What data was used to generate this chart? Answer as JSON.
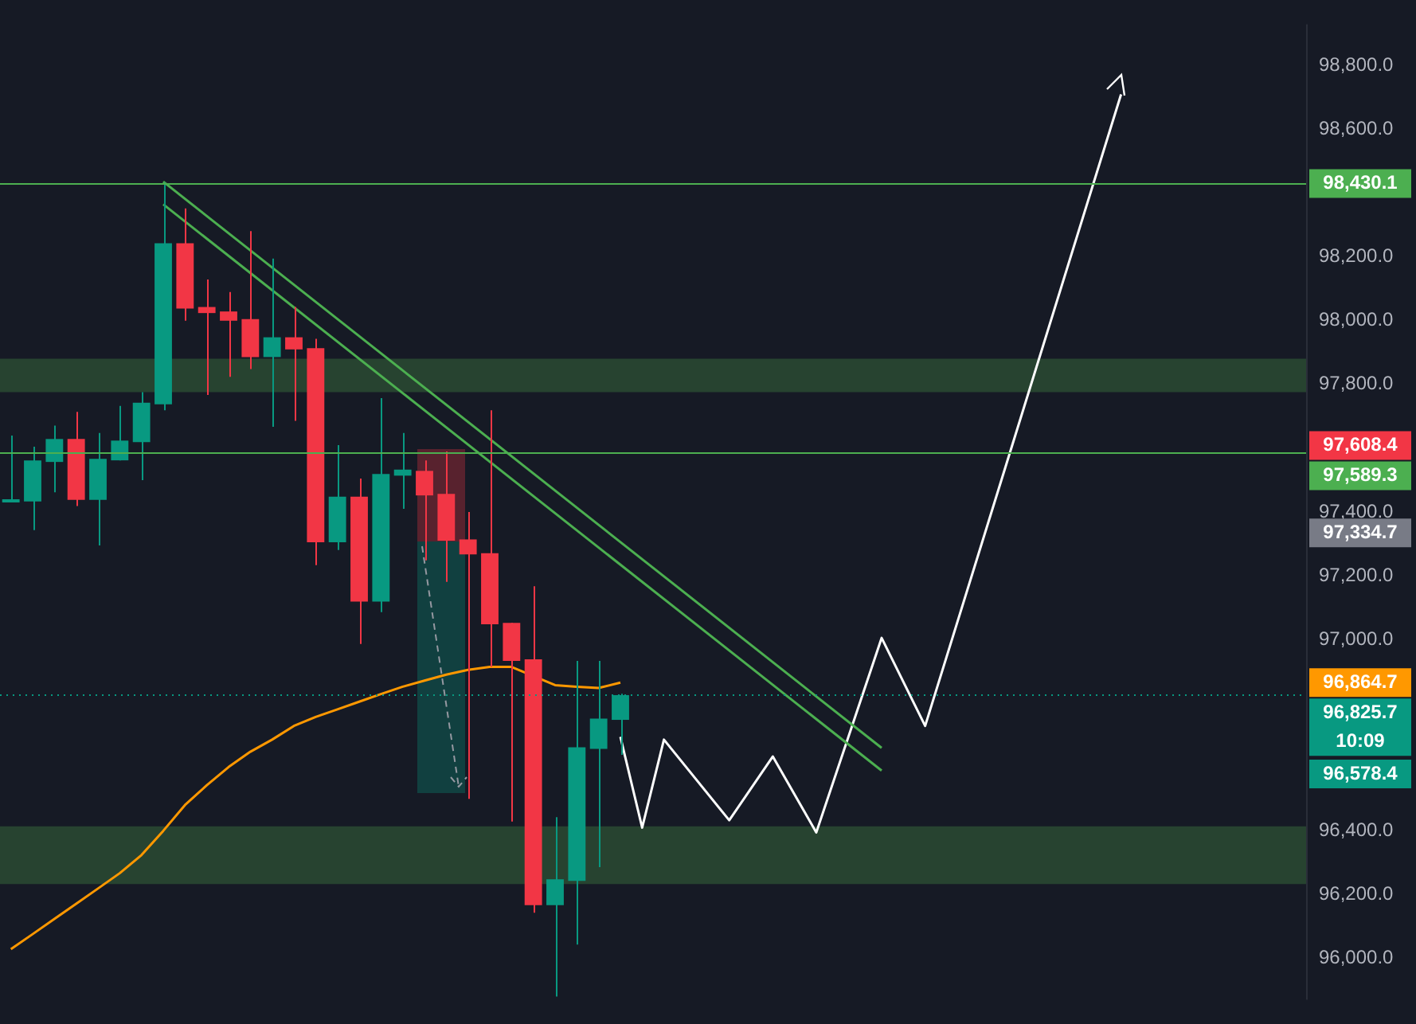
{
  "chart_data": {
    "type": "candlestick",
    "categories": [
      null,
      null,
      null,
      null,
      null,
      null,
      null,
      null,
      null,
      null,
      null,
      null,
      null,
      null,
      null,
      null,
      null,
      null,
      null,
      null,
      null,
      null,
      null,
      null,
      null,
      null,
      null,
      null,
      null,
      null,
      null,
      null,
      null,
      null,
      null,
      null,
      null,
      null,
      null,
      null,
      null,
      null,
      null,
      null,
      null,
      null,
      null,
      null,
      null,
      null,
      null,
      null,
      null,
      null,
      null,
      null,
      null,
      null,
      null,
      null
    ],
    "ohlc": [
      [
        97430,
        97640,
        97430,
        97440
      ],
      [
        97433,
        97605,
        97343,
        97562
      ],
      [
        97557,
        97671,
        97462,
        97629
      ],
      [
        97629,
        97714,
        97419,
        97438
      ],
      [
        97438,
        97648,
        97295,
        97567
      ],
      [
        97562,
        97733,
        97562,
        97624
      ],
      [
        97619,
        97776,
        97500,
        97743
      ],
      [
        97738,
        98433,
        97719,
        98243
      ],
      [
        98243,
        98352,
        98000,
        98038
      ],
      [
        98043,
        98129,
        97767,
        98024
      ],
      [
        98029,
        98090,
        97824,
        98000
      ],
      [
        98005,
        98281,
        97848,
        97886
      ],
      [
        97886,
        98195,
        97667,
        97948
      ],
      [
        97948,
        98043,
        97686,
        97910
      ],
      [
        97914,
        97943,
        97233,
        97305
      ],
      [
        97305,
        97610,
        97281,
        97448
      ],
      [
        97448,
        97505,
        96986,
        97119
      ],
      [
        97119,
        97757,
        97086,
        97519
      ],
      [
        97514,
        97648,
        97410,
        97533
      ],
      [
        97529,
        97562,
        97248,
        97452
      ],
      [
        97457,
        97590,
        97181,
        97310
      ],
      [
        97314,
        97400,
        96500,
        97267
      ],
      [
        97271,
        97719,
        96914,
        97048
      ],
      [
        97052,
        97052,
        96429,
        96933
      ],
      [
        96938,
        97167,
        96143,
        96167
      ],
      [
        96167,
        96443,
        95880,
        96248
      ],
      [
        96243,
        96933,
        96043,
        96662
      ],
      [
        96657,
        96933,
        96286,
        96752
      ],
      [
        96748,
        96830,
        96638,
        96825.7
      ],
      null,
      null,
      null,
      null,
      null,
      null,
      null,
      null,
      null,
      null,
      null,
      null,
      null,
      null,
      null,
      null,
      null,
      null,
      null,
      null,
      null,
      null,
      null,
      null,
      null,
      null,
      null,
      null,
      null,
      null,
      null
    ],
    "colors": [
      "#089981",
      "#089981",
      "#089981",
      "#f23645",
      "#089981",
      "#089981",
      "#089981",
      "#089981",
      "#f23645",
      "#f23645",
      "#f23645",
      "#f23645",
      "#089981",
      "#f23645",
      "#f23645",
      "#089981",
      "#f23645",
      "#089981",
      "#089981",
      "#f23645",
      "#f23645",
      "#f23645",
      "#f23645",
      "#f23645",
      "#f23645",
      "#089981",
      "#089981",
      "#089981",
      "#089981",
      null,
      null,
      null,
      null,
      null,
      null,
      null,
      null,
      null,
      null,
      null,
      null,
      null,
      null,
      null,
      null,
      null,
      null,
      null,
      null,
      null,
      null,
      null,
      null,
      null,
      null,
      null,
      null,
      null,
      null,
      null
    ],
    "series": [
      {
        "type": "line",
        "color": "#ff9800",
        "values": [
          96029,
          96076,
          96124,
          96171,
          96219,
          96267,
          96324,
          96400,
          96481,
          96543,
          96600,
          96648,
          96686,
          96729,
          96757,
          96781,
          96805,
          96829,
          96852,
          96871,
          96890,
          96905,
          96914,
          96914,
          null,
          96857,
          96852,
          96848,
          96865,
          null,
          null,
          null,
          null,
          null,
          null,
          null,
          null,
          null,
          null,
          null,
          null,
          null,
          null,
          null,
          null,
          null,
          null,
          null,
          null,
          null,
          null,
          null,
          null,
          null,
          null,
          null,
          null,
          null,
          null,
          null
        ]
      },
      {
        "type": "line",
        "color": "#4caf50",
        "values": [
          null,
          null,
          null,
          null,
          null,
          null,
          null,
          98436,
          null,
          null,
          null,
          null,
          null,
          null,
          null,
          null,
          null,
          null,
          null,
          null,
          null,
          null,
          null,
          null,
          null,
          null,
          null,
          null,
          null,
          null,
          null,
          null,
          null,
          null,
          null,
          null,
          null,
          null,
          null,
          null,
          96660,
          null,
          null,
          null,
          null,
          null,
          null,
          null,
          null,
          null,
          null,
          null,
          null,
          null,
          null,
          null,
          null,
          null,
          null,
          null
        ]
      },
      {
        "type": "line",
        "color": "#4caf50",
        "values": [
          null,
          null,
          null,
          null,
          null,
          null,
          null,
          98365,
          null,
          null,
          null,
          null,
          null,
          null,
          null,
          null,
          null,
          null,
          null,
          null,
          null,
          null,
          null,
          null,
          null,
          null,
          null,
          null,
          null,
          null,
          null,
          null,
          null,
          null,
          null,
          null,
          null,
          null,
          null,
          null,
          96589,
          null,
          null,
          null,
          null,
          null,
          null,
          null,
          null,
          null,
          null,
          null,
          null,
          null,
          null,
          null,
          null,
          null,
          null,
          null
        ]
      },
      {
        "type": "line",
        "color": "#ffffff",
        "values": [
          null,
          null,
          null,
          null,
          null,
          null,
          null,
          null,
          null,
          null,
          null,
          null,
          null,
          null,
          null,
          null,
          null,
          null,
          null,
          null,
          null,
          null,
          null,
          null,
          null,
          null,
          null,
          null,
          96695,
          96410,
          96686,
          null,
          null,
          96433,
          null,
          96633,
          null,
          96395,
          null,
          null,
          97005,
          null,
          96729,
          null,
          null,
          null,
          null,
          null,
          null,
          null,
          null,
          98710,
          null,
          null,
          null,
          null,
          null,
          null,
          null,
          null
        ]
      }
    ],
    "ylim": [
      95870,
      98930
    ],
    "yticks": [
      {
        "value": 96000,
        "label": "96,000.0"
      },
      {
        "value": 96200,
        "label": "96,200.0"
      },
      {
        "value": 96400,
        "label": "96,400.0"
      },
      {
        "value": 97000,
        "label": "97,000.0"
      },
      {
        "value": 97200,
        "label": "97,200.0"
      },
      {
        "value": 97400,
        "label": "97,400.0"
      },
      {
        "value": 97800,
        "label": "97,800.0"
      },
      {
        "value": 98000,
        "label": "98,000.0"
      },
      {
        "value": 98200,
        "label": "98,200.0"
      },
      {
        "value": 98600,
        "label": "98,600.0"
      },
      {
        "value": 98800,
        "label": "98,800.0"
      }
    ],
    "tick_labels": "y",
    "grid": false,
    "ref_lines": [
      {
        "axis": "y",
        "value": 98430.1,
        "label": "98,430.1",
        "color": "#4caf50",
        "line_style": "solid"
      },
      {
        "axis": "y",
        "value": 97589.3,
        "label": "97,589.3",
        "color": "#4caf50",
        "line_style": "solid"
      },
      {
        "axis": "y",
        "value": 96825.7,
        "label": "96,825.7\n10:09",
        "color": "#089981",
        "line_style": "dotted"
      }
    ],
    "bands": [
      {
        "axis": "y",
        "from": 96233,
        "to": 96414,
        "color": "#2a4b33"
      },
      {
        "axis": "y",
        "from": 97776,
        "to": 97881,
        "color": "#2a4b33"
      }
    ],
    "annotations": [
      "97,608.4",
      "97,334.7",
      "96,864.7",
      "96,578.4"
    ]
  }
}
